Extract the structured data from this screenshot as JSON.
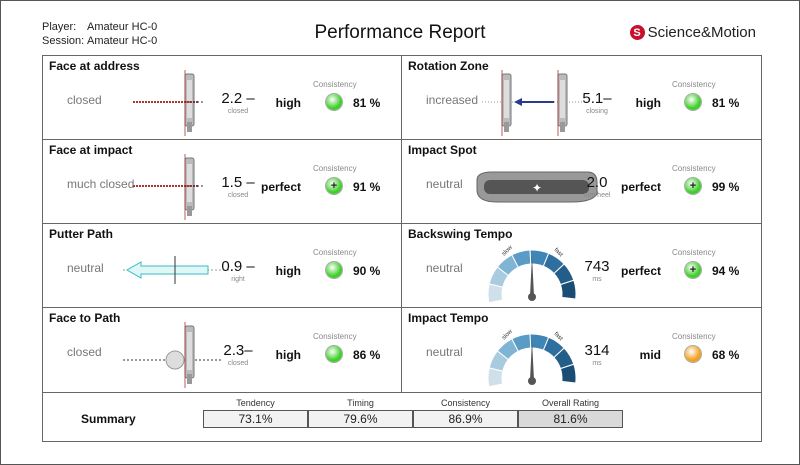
{
  "header": {
    "player_label": "Player:",
    "player": "Amateur HC-0",
    "session_label": "Session:",
    "session": "Amateur HC-0",
    "title": "Performance Report",
    "logo": "Science&Motion"
  },
  "consistency_label": "Consistency",
  "cells": [
    {
      "title": "Face at address",
      "label": "closed",
      "value": "2.2 –",
      "unit": "closed",
      "rating": "high",
      "dot_color": "#3ecf2a",
      "dot_icon": "",
      "percent": "81 %",
      "visual": "putter-face"
    },
    {
      "title": "Rotation Zone",
      "label": "increased",
      "value": "5.1–",
      "unit": "closing",
      "rating": "high",
      "dot_color": "#3ecf2a",
      "dot_icon": "",
      "percent": "81 %",
      "visual": "rotation"
    },
    {
      "title": "Face at impact",
      "label": "much closed",
      "value": "1.5 –",
      "unit": "closed",
      "rating": "perfect",
      "dot_color": "#3ecf2a",
      "dot_icon": "+",
      "percent": "91 %",
      "visual": "putter-face"
    },
    {
      "title": "Impact Spot",
      "label": "neutral",
      "value": "2.0",
      "unit": "mm heel",
      "rating": "perfect",
      "dot_color": "#3ecf2a",
      "dot_icon": "+",
      "percent": "99 %",
      "visual": "putter-top"
    },
    {
      "title": "Putter Path",
      "label": "neutral",
      "value": "0.9 –",
      "unit": "right",
      "rating": "high",
      "dot_color": "#3ecf2a",
      "dot_icon": "",
      "percent": "90 %",
      "visual": "path-arrow"
    },
    {
      "title": "Backswing Tempo",
      "label": "neutral",
      "value": "743",
      "unit": "ms",
      "rating": "perfect",
      "dot_color": "#3ecf2a",
      "dot_icon": "+",
      "percent": "94 %",
      "visual": "gauge",
      "gauge_slow": "slow",
      "gauge_fast": "fast"
    },
    {
      "title": "Face to Path",
      "label": "closed",
      "value": "2.3–",
      "unit": "closed",
      "rating": "high",
      "dot_color": "#3ecf2a",
      "dot_icon": "",
      "percent": "86 %",
      "visual": "face-ball"
    },
    {
      "title": "Impact Tempo",
      "label": "neutral",
      "value": "314",
      "unit": "ms",
      "rating": "mid",
      "dot_color": "#f0a020",
      "dot_icon": "",
      "percent": "68 %",
      "visual": "gauge",
      "gauge_slow": "slow",
      "gauge_fast": "fast"
    }
  ],
  "summary": {
    "label": "Summary",
    "items": [
      {
        "name": "Tendency",
        "value": "73.1%"
      },
      {
        "name": "Timing",
        "value": "79.6%"
      },
      {
        "name": "Consistency",
        "value": "86.9%"
      },
      {
        "name": "Overall Rating",
        "value": "81.6%"
      }
    ]
  }
}
